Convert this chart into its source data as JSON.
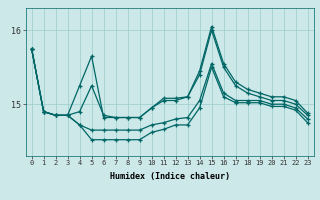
{
  "xlabel": "Humidex (Indice chaleur)",
  "bg_color": "#cce8e8",
  "line_color": "#006666",
  "grid_color": "#99cccc",
  "ylim": [
    14.3,
    16.3
  ],
  "xlim": [
    -0.5,
    23.5
  ],
  "yticks": [
    15,
    16
  ],
  "xticks": [
    0,
    1,
    2,
    3,
    4,
    5,
    6,
    7,
    8,
    9,
    10,
    11,
    12,
    13,
    14,
    15,
    16,
    17,
    18,
    19,
    20,
    21,
    22,
    23
  ],
  "series": [
    [
      15.75,
      14.9,
      14.85,
      14.85,
      14.9,
      15.25,
      14.85,
      14.82,
      14.82,
      14.82,
      14.95,
      15.08,
      15.08,
      15.1,
      15.45,
      16.05,
      15.55,
      15.3,
      15.2,
      15.15,
      15.1,
      15.1,
      15.05,
      14.88
    ],
    [
      15.75,
      14.9,
      14.85,
      14.85,
      15.25,
      15.65,
      14.82,
      14.82,
      14.82,
      14.82,
      14.95,
      15.05,
      15.05,
      15.1,
      15.4,
      16.0,
      15.5,
      15.25,
      15.15,
      15.1,
      15.05,
      15.05,
      15.0,
      14.85
    ],
    [
      15.75,
      14.9,
      14.85,
      14.85,
      14.72,
      14.65,
      14.65,
      14.65,
      14.65,
      14.65,
      14.72,
      14.75,
      14.8,
      14.82,
      15.05,
      15.55,
      15.15,
      15.05,
      15.05,
      15.05,
      15.0,
      15.0,
      14.95,
      14.8
    ],
    [
      15.75,
      14.9,
      14.85,
      14.85,
      14.72,
      14.52,
      14.52,
      14.52,
      14.52,
      14.52,
      14.62,
      14.66,
      14.72,
      14.72,
      14.95,
      15.5,
      15.1,
      15.02,
      15.02,
      15.02,
      14.97,
      14.97,
      14.92,
      14.75
    ]
  ]
}
